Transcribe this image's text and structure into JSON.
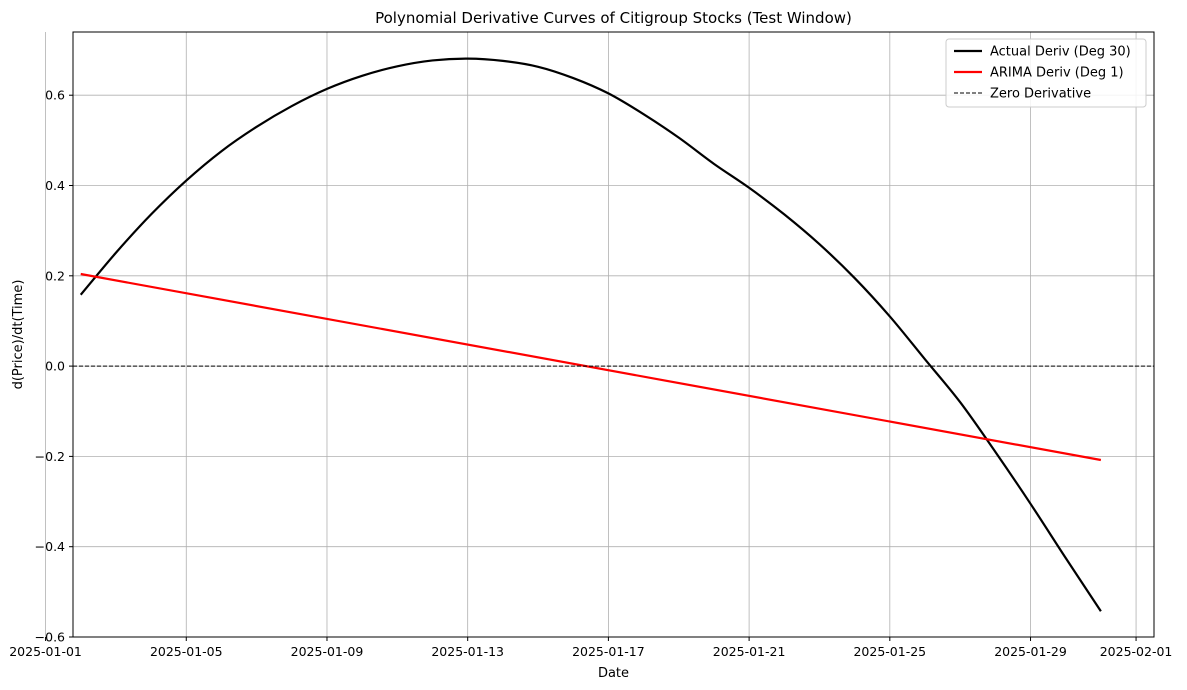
{
  "chart_data": {
    "type": "line",
    "title": "Polynomial Derivative Curves of Citigroup Stocks (Test Window)",
    "xlabel": "Date",
    "ylabel": "d(Price)/dt(Time)",
    "xlim": [
      "2025-01-01",
      "2025-02-01"
    ],
    "ylim": [
      -0.6,
      0.74
    ],
    "grid": true,
    "legend_position": "top-right",
    "x_ticks": [
      "2025-01-01",
      "2025-01-05",
      "2025-01-09",
      "2025-01-13",
      "2025-01-17",
      "2025-01-21",
      "2025-01-25",
      "2025-01-29",
      "2025-02-01"
    ],
    "y_ticks": [
      -0.6,
      -0.4,
      -0.2,
      0.0,
      0.2,
      0.4,
      0.6
    ],
    "series": [
      {
        "name": "Actual Deriv (Deg 30)",
        "color": "#000000",
        "style": "solid",
        "x": [
          "2025-01-02",
          "2025-01-03",
          "2025-01-04",
          "2025-01-05",
          "2025-01-06",
          "2025-01-07",
          "2025-01-08",
          "2025-01-09",
          "2025-01-10",
          "2025-01-11",
          "2025-01-12",
          "2025-01-13",
          "2025-01-14",
          "2025-01-15",
          "2025-01-16",
          "2025-01-17",
          "2025-01-18",
          "2025-01-19",
          "2025-01-20",
          "2025-01-21",
          "2025-01-22",
          "2025-01-23",
          "2025-01-24",
          "2025-01-25",
          "2025-01-26",
          "2025-01-27",
          "2025-01-28",
          "2025-01-29",
          "2025-01-30",
          "2025-01-31"
        ],
        "values": [
          0.158,
          0.251,
          0.336,
          0.411,
          0.476,
          0.53,
          0.576,
          0.614,
          0.643,
          0.664,
          0.677,
          0.681,
          0.676,
          0.663,
          0.638,
          0.604,
          0.558,
          0.506,
          0.448,
          0.395,
          0.336,
          0.27,
          0.195,
          0.11,
          0.015,
          -0.08,
          -0.19,
          -0.305,
          -0.425,
          -0.543
        ]
      },
      {
        "name": "ARIMA Deriv (Deg 1)",
        "color": "#ff0000",
        "style": "solid",
        "x": [
          "2025-01-02",
          "2025-01-31"
        ],
        "values": [
          0.204,
          -0.208
        ]
      },
      {
        "name": "Zero Derivative",
        "color": "#000000",
        "style": "dashed",
        "x": [
          "2025-01-01",
          "2025-02-01"
        ],
        "values": [
          0.0,
          0.0
        ]
      }
    ]
  }
}
